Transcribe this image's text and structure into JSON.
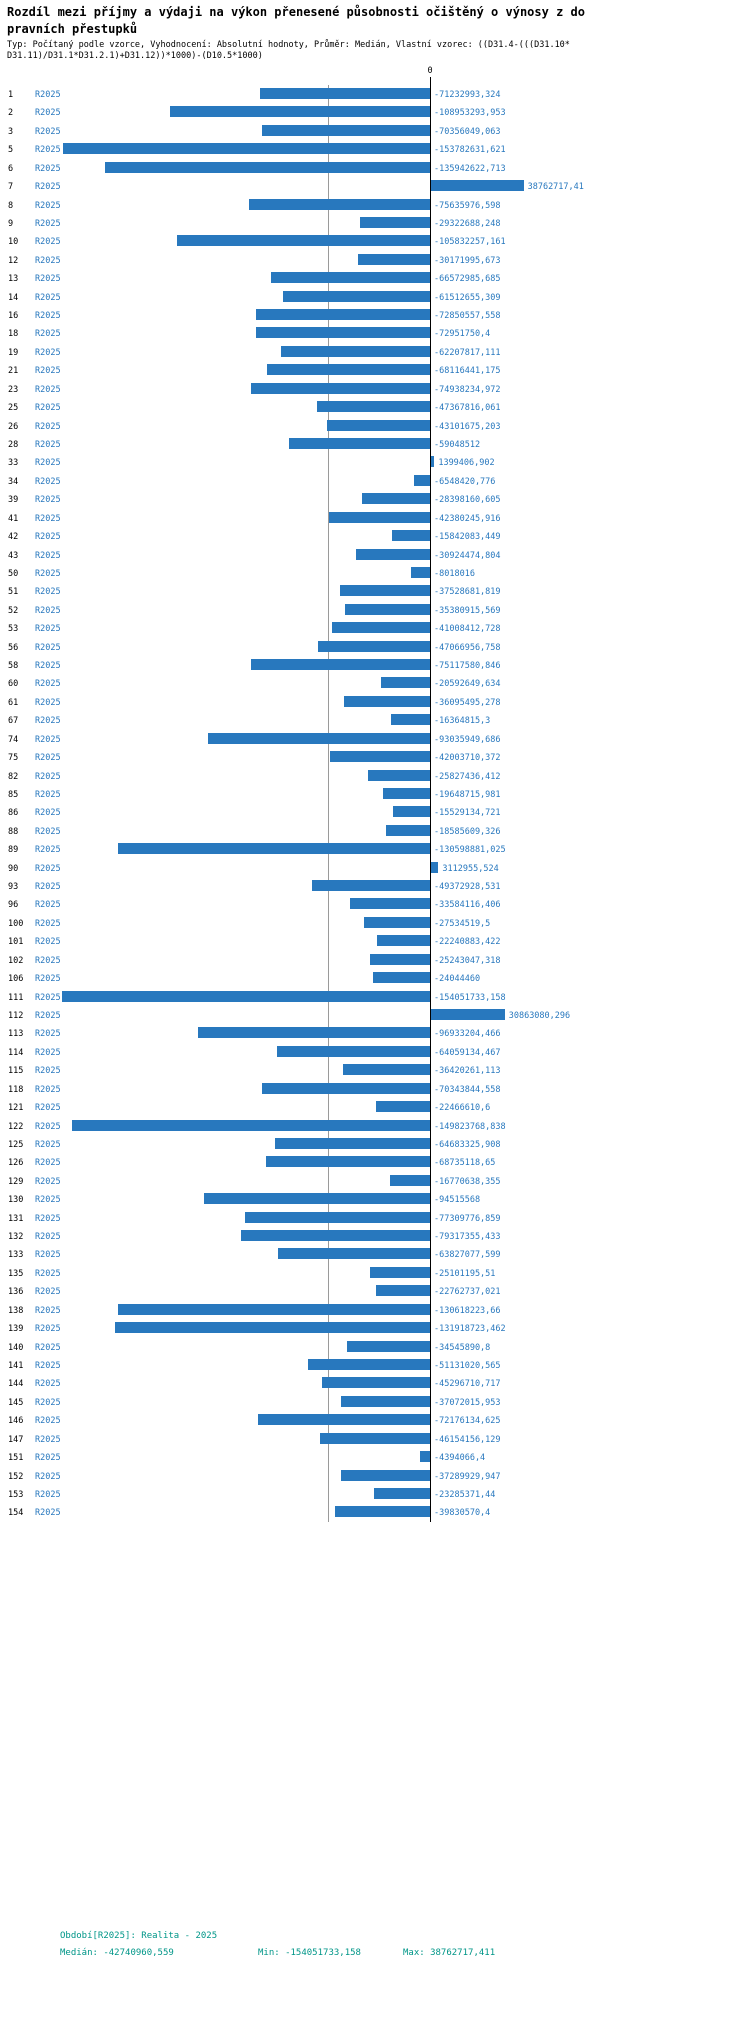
{
  "title": {
    "line1": "Rozdíl mezi příjmy a výdaji na výkon přenesené působnosti očištěný o výnosy z do",
    "line2": "pravních přestupků"
  },
  "subtitle": {
    "line1": "Typ: Počítaný podle vzorce, Vyhodnocení: Absolutní hodnoty, Průměr: Medián, Vlastní vzorec: ((D31.4-(((D31.10*",
    "line2": "D31.11)/D31.1*D31.2.1)+D31.12))*1000)-(D10.5*1000)"
  },
  "axis": {
    "zero_label": "0"
  },
  "footer": {
    "period": "Období[R2025]: Realita - 2025",
    "median": "Medián: -42740960,559",
    "min": "Min: -154051733,158",
    "max": "Max: 38762717,411"
  },
  "colors": {
    "bar": "#2878be",
    "value_label": "#2878be",
    "row_id": "#000000",
    "axis_line": "#000000",
    "median_line": "#9a9a9a",
    "footer_text": "#009688"
  },
  "chart_data": {
    "type": "bar",
    "orientation": "horizontal",
    "title": "Rozdíl mezi příjmy a výdaji na výkon přenesené působnosti očištěný o výnosy z dopravních přestupků",
    "xlabel": "",
    "ylabel": "",
    "period_label": "R2025",
    "median": -42740960.559,
    "min": -154051733.158,
    "max": 38762717.411,
    "xlim": [
      -160000000,
      45000000
    ],
    "grid": false,
    "zero_line": true,
    "median_line": true,
    "rows": [
      {
        "id": "1",
        "value": -71232993.324,
        "label": "-71232993,324"
      },
      {
        "id": "2",
        "value": -108953293.953,
        "label": "-108953293,953"
      },
      {
        "id": "3",
        "value": -70356049.063,
        "label": "-70356049,063"
      },
      {
        "id": "5",
        "value": -153782631.621,
        "label": "-153782631,621"
      },
      {
        "id": "6",
        "value": -135942622.713,
        "label": "-135942622,713"
      },
      {
        "id": "7",
        "value": 38762717.41,
        "label": "38762717,41"
      },
      {
        "id": "8",
        "value": -75635976.598,
        "label": "-75635976,598"
      },
      {
        "id": "9",
        "value": -29322688.248,
        "label": "-29322688,248"
      },
      {
        "id": "10",
        "value": -105832257.161,
        "label": "-105832257,161"
      },
      {
        "id": "12",
        "value": -30171995.673,
        "label": "-30171995,673"
      },
      {
        "id": "13",
        "value": -66572985.685,
        "label": "-66572985,685"
      },
      {
        "id": "14",
        "value": -61512655.309,
        "label": "-61512655,309"
      },
      {
        "id": "16",
        "value": -72850557.558,
        "label": "-72850557,558"
      },
      {
        "id": "18",
        "value": -72951750.4,
        "label": "-72951750,4"
      },
      {
        "id": "19",
        "value": -62207817.111,
        "label": "-62207817,111"
      },
      {
        "id": "21",
        "value": -68116441.175,
        "label": "-68116441,175"
      },
      {
        "id": "23",
        "value": -74938234.972,
        "label": "-74938234,972"
      },
      {
        "id": "25",
        "value": -47367816.061,
        "label": "-47367816,061"
      },
      {
        "id": "26",
        "value": -43101675.203,
        "label": "-43101675,203"
      },
      {
        "id": "28",
        "value": -59048512,
        "label": "-59048512"
      },
      {
        "id": "33",
        "value": 1399406.902,
        "label": "1399406,902"
      },
      {
        "id": "34",
        "value": -6548420.776,
        "label": "-6548420,776"
      },
      {
        "id": "39",
        "value": -28398160.605,
        "label": "-28398160,605"
      },
      {
        "id": "41",
        "value": -42380245.916,
        "label": "-42380245,916"
      },
      {
        "id": "42",
        "value": -15842083.449,
        "label": "-15842083,449"
      },
      {
        "id": "43",
        "value": -30924474.804,
        "label": "-30924474,804"
      },
      {
        "id": "50",
        "value": -8018016,
        "label": "-8018016"
      },
      {
        "id": "51",
        "value": -37528681.819,
        "label": "-37528681,819"
      },
      {
        "id": "52",
        "value": -35380915.569,
        "label": "-35380915,569"
      },
      {
        "id": "53",
        "value": -41008412.728,
        "label": "-41008412,728"
      },
      {
        "id": "56",
        "value": -47066956.758,
        "label": "-47066956,758"
      },
      {
        "id": "58",
        "value": -75117580.846,
        "label": "-75117580,846"
      },
      {
        "id": "60",
        "value": -20592649.634,
        "label": "-20592649,634"
      },
      {
        "id": "61",
        "value": -36095495.278,
        "label": "-36095495,278"
      },
      {
        "id": "67",
        "value": -16364815.3,
        "label": "-16364815,3"
      },
      {
        "id": "74",
        "value": -93035949.686,
        "label": "-93035949,686"
      },
      {
        "id": "75",
        "value": -42003710.372,
        "label": "-42003710,372"
      },
      {
        "id": "82",
        "value": -25827436.412,
        "label": "-25827436,412"
      },
      {
        "id": "85",
        "value": -19648715.981,
        "label": "-19648715,981"
      },
      {
        "id": "86",
        "value": -15529134.721,
        "label": "-15529134,721"
      },
      {
        "id": "88",
        "value": -18585609.326,
        "label": "-18585609,326"
      },
      {
        "id": "89",
        "value": -130598881.025,
        "label": "-130598881,025"
      },
      {
        "id": "90",
        "value": 3112955.524,
        "label": "3112955,524"
      },
      {
        "id": "93",
        "value": -49372928.531,
        "label": "-49372928,531"
      },
      {
        "id": "96",
        "value": -33584116.406,
        "label": "-33584116,406"
      },
      {
        "id": "100",
        "value": -27534519.5,
        "label": "-27534519,5"
      },
      {
        "id": "101",
        "value": -22240883.422,
        "label": "-22240883,422"
      },
      {
        "id": "102",
        "value": -25243047.318,
        "label": "-25243047,318"
      },
      {
        "id": "106",
        "value": -24044460,
        "label": "-24044460"
      },
      {
        "id": "111",
        "value": -154051733.158,
        "label": "-154051733,158"
      },
      {
        "id": "112",
        "value": 30863080.296,
        "label": "30863080,296"
      },
      {
        "id": "113",
        "value": -96933204.466,
        "label": "-96933204,466"
      },
      {
        "id": "114",
        "value": -64059134.467,
        "label": "-64059134,467"
      },
      {
        "id": "115",
        "value": -36420261.113,
        "label": "-36420261,113"
      },
      {
        "id": "118",
        "value": -70343844.558,
        "label": "-70343844,558"
      },
      {
        "id": "121",
        "value": -22466610.6,
        "label": "-22466610,6"
      },
      {
        "id": "122",
        "value": -149823768.838,
        "label": "-149823768,838"
      },
      {
        "id": "125",
        "value": -64683325.908,
        "label": "-64683325,908"
      },
      {
        "id": "126",
        "value": -68735118.65,
        "label": "-68735118,65"
      },
      {
        "id": "129",
        "value": -16770638.355,
        "label": "-16770638,355"
      },
      {
        "id": "130",
        "value": -94515568,
        "label": "-94515568"
      },
      {
        "id": "131",
        "value": -77309776.859,
        "label": "-77309776,859"
      },
      {
        "id": "132",
        "value": -79317355.433,
        "label": "-79317355,433"
      },
      {
        "id": "133",
        "value": -63827077.599,
        "label": "-63827077,599"
      },
      {
        "id": "135",
        "value": -25101195.51,
        "label": "-25101195,51"
      },
      {
        "id": "136",
        "value": -22762737.021,
        "label": "-22762737,021"
      },
      {
        "id": "138",
        "value": -130618223.66,
        "label": "-130618223,66"
      },
      {
        "id": "139",
        "value": -131918723.462,
        "label": "-131918723,462"
      },
      {
        "id": "140",
        "value": -34545890.8,
        "label": "-34545890,8"
      },
      {
        "id": "141",
        "value": -51131020.565,
        "label": "-51131020,565"
      },
      {
        "id": "144",
        "value": -45296710.717,
        "label": "-45296710,717"
      },
      {
        "id": "145",
        "value": -37072015.953,
        "label": "-37072015,953"
      },
      {
        "id": "146",
        "value": -72176134.625,
        "label": "-72176134,625"
      },
      {
        "id": "147",
        "value": -46154156.129,
        "label": "-46154156,129"
      },
      {
        "id": "151",
        "value": -4394066.4,
        "label": "-4394066,4"
      },
      {
        "id": "152",
        "value": -37289929.947,
        "label": "-37289929,947"
      },
      {
        "id": "153",
        "value": -23285371.44,
        "label": "-23285371,44"
      },
      {
        "id": "154",
        "value": -39830570.4,
        "label": "-39830570,4"
      }
    ]
  }
}
